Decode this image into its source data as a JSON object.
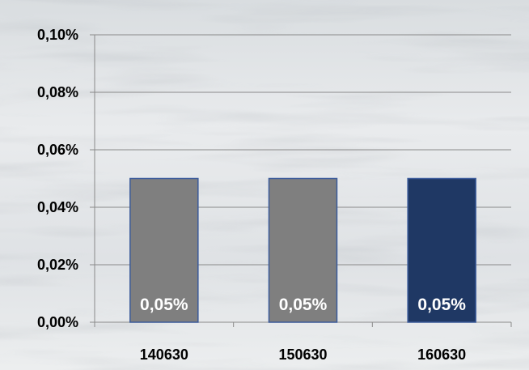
{
  "chart_data": {
    "type": "bar",
    "title": "",
    "xlabel": "",
    "ylabel": "",
    "categories": [
      "140630",
      "150630",
      "160630"
    ],
    "values": [
      0.05,
      0.05,
      0.05
    ],
    "data_labels": [
      "0,05%",
      "0,05%",
      "0,05%"
    ],
    "bar_colors": [
      "#7f7f7f",
      "#7f7f7f",
      "#1f3864"
    ],
    "bar_edge_color": "#3a5a9a",
    "ylim": [
      0,
      0.1
    ],
    "yticks": [
      0,
      0.02,
      0.04,
      0.06,
      0.08,
      0.1
    ],
    "ytick_labels": [
      "0,00%",
      "0,02%",
      "0,04%",
      "0,06%",
      "0,08%",
      "0,10%"
    ],
    "grid": true,
    "legend": "none",
    "background": "photo-style grey/white water texture"
  }
}
